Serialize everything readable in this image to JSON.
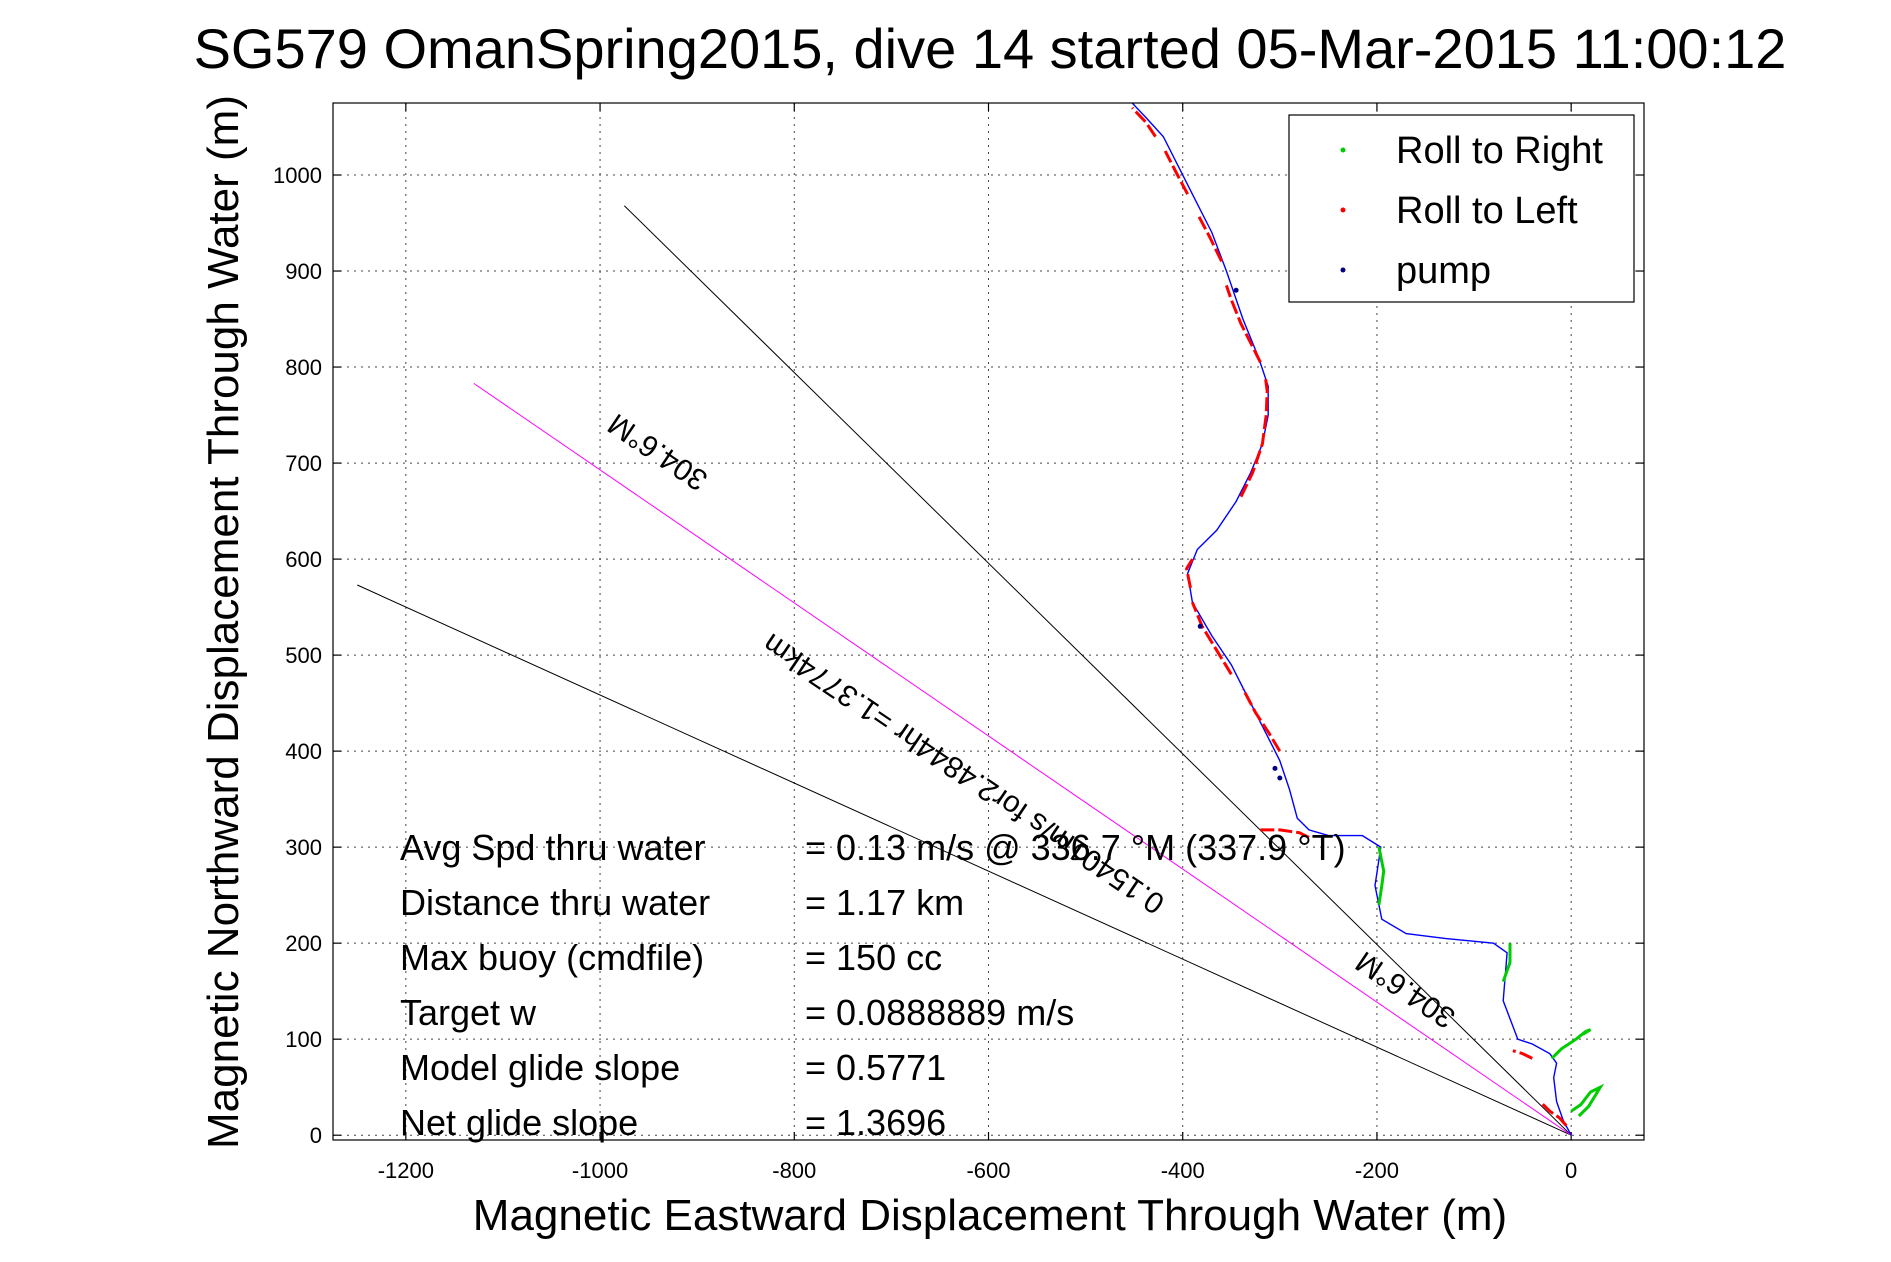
{
  "chart_data": {
    "type": "line",
    "title": "SG579 OmanSpring2015, dive 14 started 05-Mar-2015 11:00:12",
    "xlabel": "Magnetic Eastward Displacement Through Water (m)",
    "ylabel": "Magnetic Northward Displacement Through Water (m)",
    "xlim": [
      -1275,
      75
    ],
    "ylim": [
      -5,
      1075
    ],
    "grid": true,
    "legend_position": "top-right",
    "x_ticks": [
      -1200,
      -1000,
      -800,
      -600,
      -400,
      -200,
      0
    ],
    "y_ticks": [
      0,
      100,
      200,
      300,
      400,
      500,
      600,
      700,
      800,
      900,
      1000
    ],
    "x_tick_labels": [
      "-1200",
      "-1000",
      "-800",
      "-600",
      "-400",
      "-200",
      "0"
    ],
    "y_tick_labels": [
      "0",
      "100",
      "200",
      "300",
      "400",
      "500",
      "600",
      "700",
      "800",
      "900",
      "1000"
    ],
    "legend": [
      {
        "label": "Roll to Right",
        "color": "#00cc00"
      },
      {
        "label": "Roll to Left",
        "color": "#ff0000"
      },
      {
        "label": "pump",
        "color": "#000080"
      }
    ],
    "track": {
      "color": "#0000ff",
      "points": [
        [
          0,
          0
        ],
        [
          -8,
          15
        ],
        [
          -15,
          35
        ],
        [
          -18,
          60
        ],
        [
          -15,
          75
        ],
        [
          -22,
          85
        ],
        [
          -40,
          95
        ],
        [
          -55,
          100
        ],
        [
          -70,
          140
        ],
        [
          -66,
          190
        ],
        [
          -80,
          200
        ],
        [
          -130,
          205
        ],
        [
          -170,
          210
        ],
        [
          -195,
          225
        ],
        [
          -202,
          260
        ],
        [
          -196,
          300
        ],
        [
          -215,
          312
        ],
        [
          -250,
          312
        ],
        [
          -270,
          318
        ],
        [
          -282,
          330
        ],
        [
          -290,
          360
        ],
        [
          -300,
          390
        ],
        [
          -315,
          420
        ],
        [
          -335,
          460
        ],
        [
          -350,
          490
        ],
        [
          -370,
          520
        ],
        [
          -390,
          555
        ],
        [
          -395,
          585
        ],
        [
          -385,
          610
        ],
        [
          -365,
          630
        ],
        [
          -345,
          660
        ],
        [
          -330,
          690
        ],
        [
          -318,
          720
        ],
        [
          -312,
          750
        ],
        [
          -312,
          780
        ],
        [
          -322,
          810
        ],
        [
          -338,
          850
        ],
        [
          -355,
          900
        ],
        [
          -370,
          940
        ],
        [
          -390,
          980
        ],
        [
          -405,
          1010
        ],
        [
          -420,
          1040
        ],
        [
          -438,
          1060
        ],
        [
          -452,
          1075
        ]
      ]
    },
    "roll_right_segments": [
      [
        [
          -198,
          240
        ],
        [
          -195,
          260
        ],
        [
          -193,
          275
        ],
        [
          -196,
          290
        ],
        [
          -198,
          300
        ]
      ],
      [
        [
          -70,
          160
        ],
        [
          -63,
          180
        ],
        [
          -63,
          200
        ]
      ],
      [
        [
          0,
          25
        ],
        [
          10,
          32
        ],
        [
          20,
          45
        ],
        [
          30,
          50
        ],
        [
          27,
          45
        ],
        [
          18,
          30
        ],
        [
          8,
          20
        ]
      ],
      [
        [
          -20,
          80
        ],
        [
          -10,
          90
        ],
        [
          5,
          100
        ],
        [
          15,
          108
        ],
        [
          20,
          110
        ],
        [
          12,
          105
        ]
      ]
    ],
    "roll_left_segments": [
      [
        [
          -5,
          10
        ],
        [
          -12,
          18
        ],
        [
          -22,
          25
        ],
        [
          -32,
          35
        ]
      ],
      [
        [
          -40,
          80
        ],
        [
          -50,
          85
        ],
        [
          -60,
          88
        ]
      ],
      [
        [
          -270,
          310
        ],
        [
          -280,
          315
        ],
        [
          -300,
          318
        ],
        [
          -320,
          318
        ]
      ],
      [
        [
          -300,
          400
        ],
        [
          -312,
          420
        ],
        [
          -325,
          440
        ],
        [
          -338,
          465
        ]
      ],
      [
        [
          -350,
          480
        ],
        [
          -365,
          505
        ],
        [
          -380,
          530
        ],
        [
          -390,
          555
        ]
      ],
      [
        [
          -392,
          570
        ],
        [
          -396,
          590
        ],
        [
          -390,
          600
        ]
      ],
      [
        [
          -340,
          665
        ],
        [
          -328,
          690
        ],
        [
          -318,
          720
        ],
        [
          -314,
          750
        ],
        [
          -313,
          775
        ],
        [
          -315,
          790
        ]
      ],
      [
        [
          -320,
          805
        ],
        [
          -330,
          825
        ],
        [
          -340,
          845
        ],
        [
          -350,
          870
        ],
        [
          -355,
          885
        ]
      ],
      [
        [
          -360,
          910
        ],
        [
          -372,
          935
        ],
        [
          -385,
          960
        ]
      ],
      [
        [
          -395,
          980
        ],
        [
          -408,
          1005
        ],
        [
          -418,
          1025
        ]
      ],
      [
        [
          -428,
          1040
        ],
        [
          -438,
          1055
        ],
        [
          -452,
          1070
        ]
      ]
    ],
    "pump_points": [
      [
        -300,
        372
      ],
      [
        -305,
        382
      ],
      [
        -345,
        880
      ],
      [
        -382,
        530
      ]
    ],
    "reference_lines": [
      {
        "from": [
          0,
          0
        ],
        "to": [
          -975,
          968
        ],
        "color": "#000000"
      },
      {
        "from": [
          0,
          0
        ],
        "to": [
          -1250,
          573
        ],
        "color": "#000000"
      },
      {
        "from": [
          0,
          0
        ],
        "to": [
          -1130,
          783
        ],
        "color": "#ff00ff"
      }
    ],
    "line_labels": [
      {
        "text": "304.6°M",
        "x": -935,
        "y": 720,
        "angle_deg": 214
      },
      {
        "text": "0.15401m/s for2.4844hr =1.3774km",
        "x": -620,
        "y": 385,
        "angle_deg": 214
      },
      {
        "text": "304.6°M",
        "x": -165,
        "y": 160,
        "angle_deg": 214
      }
    ],
    "stats": [
      {
        "label": "Avg Spd thru water",
        "value": "=  0.13 m/s @ 336.7 °M (337.9 °T)"
      },
      {
        "label": "Distance thru water",
        "value": "=  1.17 km"
      },
      {
        "label": "Max buoy (cmdfile)",
        "value": "= 150 cc"
      },
      {
        "label": "Target w",
        "value": "= 0.0888889 m/s"
      },
      {
        "label": "Model glide slope",
        "value": "= 0.5771"
      },
      {
        "label": "Net glide slope",
        "value": "= 1.3696"
      }
    ]
  }
}
